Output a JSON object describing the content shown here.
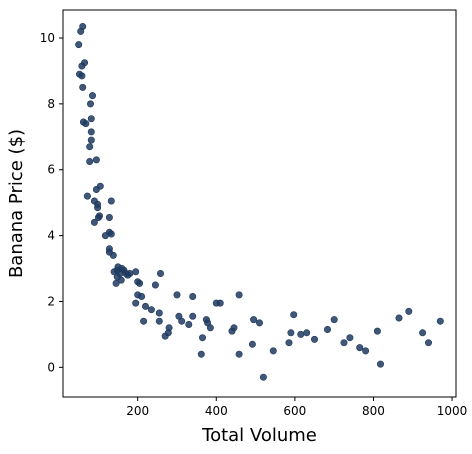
{
  "chart_data": {
    "type": "scatter",
    "xlabel": "Total Volume",
    "ylabel": "Banana Price ($)",
    "xlim": [
      10,
      1010
    ],
    "ylim": [
      -0.9,
      10.85
    ],
    "xticks": [
      200,
      400,
      600,
      800,
      1000
    ],
    "yticks": [
      0,
      2,
      4,
      6,
      8,
      10
    ],
    "grid": false,
    "marker_color": "#1f3a5f",
    "points": [
      [
        50,
        9.8
      ],
      [
        55,
        10.2
      ],
      [
        60,
        10.35
      ],
      [
        52,
        8.9
      ],
      [
        58,
        8.85
      ],
      [
        58,
        9.15
      ],
      [
        65,
        9.25
      ],
      [
        60,
        8.5
      ],
      [
        85,
        8.25
      ],
      [
        80,
        8.0
      ],
      [
        62,
        7.45
      ],
      [
        68,
        7.4
      ],
      [
        82,
        7.55
      ],
      [
        82,
        7.15
      ],
      [
        82,
        6.9
      ],
      [
        78,
        6.7
      ],
      [
        78,
        6.25
      ],
      [
        95,
        6.3
      ],
      [
        105,
        5.5
      ],
      [
        95,
        5.4
      ],
      [
        72,
        5.2
      ],
      [
        90,
        5.05
      ],
      [
        98,
        4.95
      ],
      [
        98,
        4.85
      ],
      [
        133,
        5.05
      ],
      [
        103,
        4.6
      ],
      [
        100,
        4.55
      ],
      [
        90,
        4.4
      ],
      [
        128,
        4.55
      ],
      [
        118,
        4.0
      ],
      [
        128,
        4.1
      ],
      [
        133,
        4.05
      ],
      [
        128,
        3.6
      ],
      [
        128,
        3.5
      ],
      [
        138,
        3.4
      ],
      [
        150,
        3.05
      ],
      [
        148,
        2.95
      ],
      [
        140,
        2.9
      ],
      [
        148,
        2.75
      ],
      [
        155,
        2.85
      ],
      [
        160,
        3.0
      ],
      [
        165,
        2.95
      ],
      [
        170,
        2.85
      ],
      [
        145,
        2.55
      ],
      [
        158,
        2.65
      ],
      [
        175,
        2.8
      ],
      [
        180,
        2.85
      ],
      [
        195,
        2.9
      ],
      [
        200,
        2.6
      ],
      [
        205,
        2.55
      ],
      [
        200,
        2.2
      ],
      [
        210,
        2.15
      ],
      [
        195,
        1.95
      ],
      [
        220,
        1.85
      ],
      [
        215,
        1.4
      ],
      [
        235,
        1.75
      ],
      [
        245,
        2.5
      ],
      [
        258,
        2.85
      ],
      [
        255,
        1.65
      ],
      [
        255,
        1.4
      ],
      [
        270,
        0.95
      ],
      [
        278,
        1.05
      ],
      [
        280,
        1.2
      ],
      [
        300,
        2.2
      ],
      [
        305,
        1.55
      ],
      [
        312,
        1.4
      ],
      [
        330,
        1.3
      ],
      [
        340,
        2.15
      ],
      [
        340,
        1.55
      ],
      [
        362,
        0.4
      ],
      [
        365,
        0.9
      ],
      [
        375,
        1.45
      ],
      [
        378,
        1.35
      ],
      [
        385,
        1.2
      ],
      [
        400,
        1.95
      ],
      [
        410,
        1.95
      ],
      [
        440,
        1.1
      ],
      [
        445,
        1.2
      ],
      [
        458,
        2.2
      ],
      [
        458,
        0.4
      ],
      [
        492,
        0.7
      ],
      [
        495,
        1.45
      ],
      [
        510,
        1.35
      ],
      [
        520,
        -0.3
      ],
      [
        545,
        0.5
      ],
      [
        585,
        0.75
      ],
      [
        590,
        1.05
      ],
      [
        597,
        1.6
      ],
      [
        615,
        1.0
      ],
      [
        630,
        1.05
      ],
      [
        650,
        0.85
      ],
      [
        683,
        1.15
      ],
      [
        700,
        1.45
      ],
      [
        725,
        0.75
      ],
      [
        740,
        0.9
      ],
      [
        765,
        0.6
      ],
      [
        780,
        0.5
      ],
      [
        810,
        1.1
      ],
      [
        818,
        0.1
      ],
      [
        865,
        1.5
      ],
      [
        890,
        1.7
      ],
      [
        925,
        1.05
      ],
      [
        940,
        0.75
      ],
      [
        970,
        1.4
      ]
    ]
  }
}
